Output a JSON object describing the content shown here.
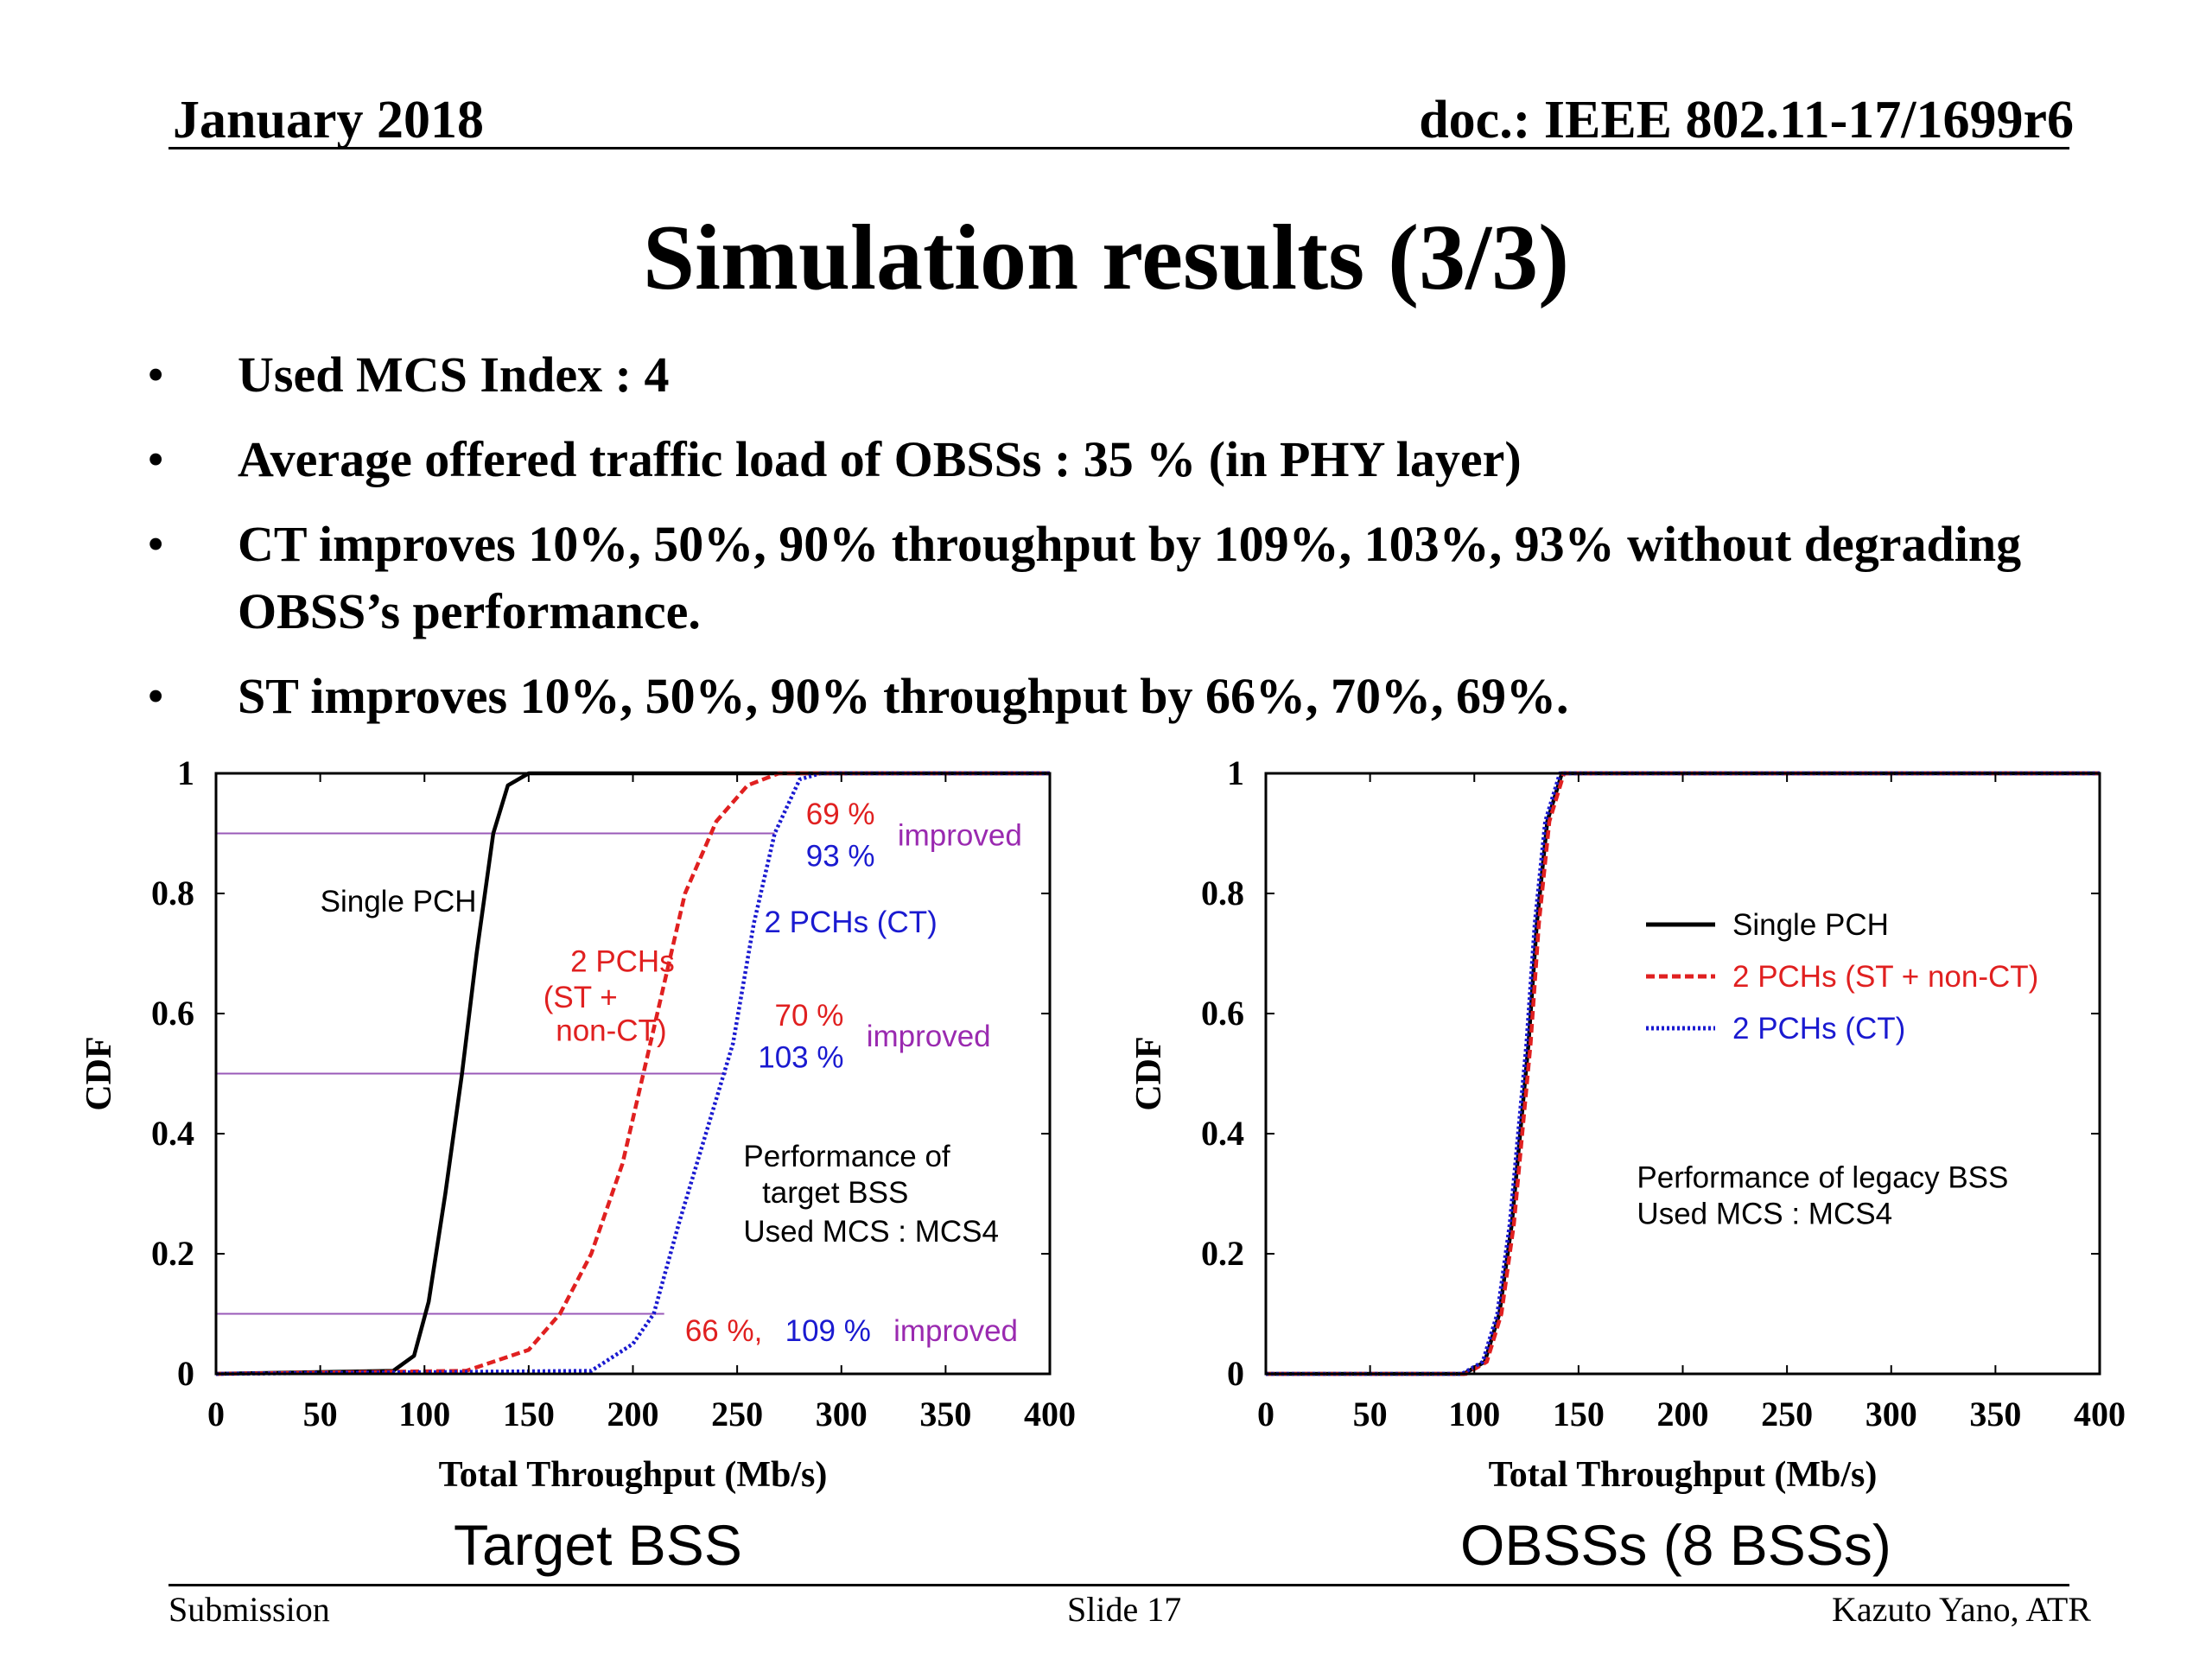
{
  "header": {
    "date": "January 2018",
    "doc": "doc.: IEEE 802.11-17/1699r6"
  },
  "title": "Simulation results (3/3)",
  "bullets": [
    "Used MCS Index : 4",
    "Average offered traffic load of OBSSs : 35 % (in PHY layer)",
    "CT improves 10%, 50%, 90% throughput by 109%, 103%, 93% without degrading OBSS’s performance.",
    "ST improves 10%, 50%, 90% throughput by 66%, 70%, 69%."
  ],
  "bullet_symbol": "•",
  "captions": {
    "left": "Target BSS",
    "right": "OBSSs (8 BSSs)"
  },
  "footer": {
    "left": "Submission",
    "center": "Slide 17",
    "right": "Kazuto Yano, ATR"
  },
  "colors": {
    "single": "#000000",
    "st": "#e02020",
    "ct": "#1a1ad0",
    "guide": "#9a5ab8",
    "improved": "#9a2ab0"
  },
  "chart_data": [
    {
      "type": "line",
      "title": "",
      "xlabel": "Total Throughput (Mb/s)",
      "ylabel": "CDF",
      "xlim": [
        0,
        400
      ],
      "ylim": [
        0,
        1
      ],
      "xticks": [
        "0",
        "50",
        "100",
        "150",
        "200",
        "250",
        "300",
        "350",
        "400"
      ],
      "yticks": [
        "0",
        "0.2",
        "0.4",
        "0.6",
        "0.8",
        "1"
      ],
      "series": [
        {
          "name": "Single PCH",
          "style": "solid",
          "x": [
            0,
            85,
            95,
            102,
            110,
            118,
            125,
            133,
            140,
            150,
            400
          ],
          "y": [
            0,
            0.005,
            0.03,
            0.12,
            0.3,
            0.5,
            0.7,
            0.9,
            0.98,
            1,
            1
          ]
        },
        {
          "name": "2 PCHs (ST + non-CT)",
          "style": "dashed",
          "x": [
            0,
            120,
            150,
            165,
            180,
            195,
            205,
            215,
            225,
            240,
            255,
            270,
            400
          ],
          "y": [
            0,
            0.005,
            0.04,
            0.1,
            0.2,
            0.35,
            0.5,
            0.65,
            0.8,
            0.92,
            0.98,
            1,
            1
          ]
        },
        {
          "name": "2 PCHs (CT)",
          "style": "dotted",
          "x": [
            0,
            180,
            200,
            210,
            222,
            235,
            248,
            258,
            268,
            280,
            290,
            400
          ],
          "y": [
            0,
            0.005,
            0.05,
            0.1,
            0.25,
            0.4,
            0.55,
            0.75,
            0.9,
            0.99,
            1,
            1
          ]
        }
      ],
      "guides": [
        {
          "y": 0.9,
          "x_end": 268
        },
        {
          "y": 0.5,
          "x_end": 245
        },
        {
          "y": 0.1,
          "x_end": 215
        }
      ],
      "annotations": [
        {
          "text": "Single PCH",
          "x": 50,
          "y": 0.77,
          "color": "#000000"
        },
        {
          "text": "2 PCHs",
          "x": 170,
          "y": 0.67,
          "color": "#e02020"
        },
        {
          "text": "(ST +",
          "x": 157,
          "y": 0.61,
          "color": "#e02020"
        },
        {
          "text": "non-CT)",
          "x": 163,
          "y": 0.555,
          "color": "#e02020"
        },
        {
          "text": "2 PCHs (CT)",
          "x": 263,
          "y": 0.735,
          "color": "#1a1ad0"
        },
        {
          "text": "69 %",
          "x": 283,
          "y": 0.915,
          "color": "#e02020"
        },
        {
          "text": "93 %",
          "x": 283,
          "y": 0.845,
          "color": "#1a1ad0"
        },
        {
          "text": "improved",
          "x": 327,
          "y": 0.88,
          "color": "#9a2ab0"
        },
        {
          "text": "70 %",
          "x": 268,
          "y": 0.58,
          "color": "#e02020"
        },
        {
          "text": "103 %",
          "x": 260,
          "y": 0.51,
          "color": "#1a1ad0"
        },
        {
          "text": "improved",
          "x": 312,
          "y": 0.545,
          "color": "#9a2ab0"
        },
        {
          "text": "Performance of",
          "x": 253,
          "y": 0.345,
          "color": "#000000"
        },
        {
          "text": "target BSS",
          "x": 262,
          "y": 0.285,
          "color": "#000000"
        },
        {
          "text": "Used MCS : MCS4",
          "x": 253,
          "y": 0.22,
          "color": "#000000"
        },
        {
          "text": "66 %,",
          "x": 225,
          "y": 0.055,
          "color": "#e02020"
        },
        {
          "text": "109 %",
          "x": 273,
          "y": 0.055,
          "color": "#1a1ad0"
        },
        {
          "text": "improved",
          "x": 325,
          "y": 0.055,
          "color": "#9a2ab0"
        }
      ]
    },
    {
      "type": "line",
      "title": "",
      "xlabel": "Total Throughput (Mb/s)",
      "ylabel": "CDF",
      "xlim": [
        0,
        400
      ],
      "ylim": [
        0,
        1
      ],
      "xticks": [
        "0",
        "50",
        "100",
        "150",
        "200",
        "250",
        "300",
        "350",
        "400"
      ],
      "yticks": [
        "0",
        "0.2",
        "0.4",
        "0.6",
        "0.8",
        "1"
      ],
      "legend_position": "right",
      "series": [
        {
          "name": "Single PCH",
          "style": "solid",
          "x": [
            0,
            95,
            105,
            112,
            118,
            122,
            126,
            130,
            135,
            142,
            400
          ],
          "y": [
            0,
            0,
            0.02,
            0.1,
            0.25,
            0.4,
            0.55,
            0.75,
            0.92,
            1,
            1
          ]
        },
        {
          "name": "2 PCHs (ST + non-CT)",
          "style": "dashed",
          "x": [
            0,
            96,
            106,
            113,
            119,
            123,
            127,
            131,
            136,
            143,
            400
          ],
          "y": [
            0,
            0,
            0.02,
            0.1,
            0.25,
            0.4,
            0.55,
            0.75,
            0.92,
            1,
            1
          ]
        },
        {
          "name": "2 PCHs (CT)",
          "style": "dotted",
          "x": [
            0,
            94,
            104,
            111,
            117,
            121,
            125,
            129,
            134,
            141,
            400
          ],
          "y": [
            0,
            0,
            0.02,
            0.1,
            0.25,
            0.4,
            0.55,
            0.75,
            0.92,
            1,
            1
          ]
        }
      ],
      "annotations": [
        {
          "text": "Performance of legacy BSS",
          "x": 178,
          "y": 0.31,
          "color": "#000000"
        },
        {
          "text": "Used MCS : MCS4",
          "x": 178,
          "y": 0.25,
          "color": "#000000"
        }
      ]
    }
  ]
}
